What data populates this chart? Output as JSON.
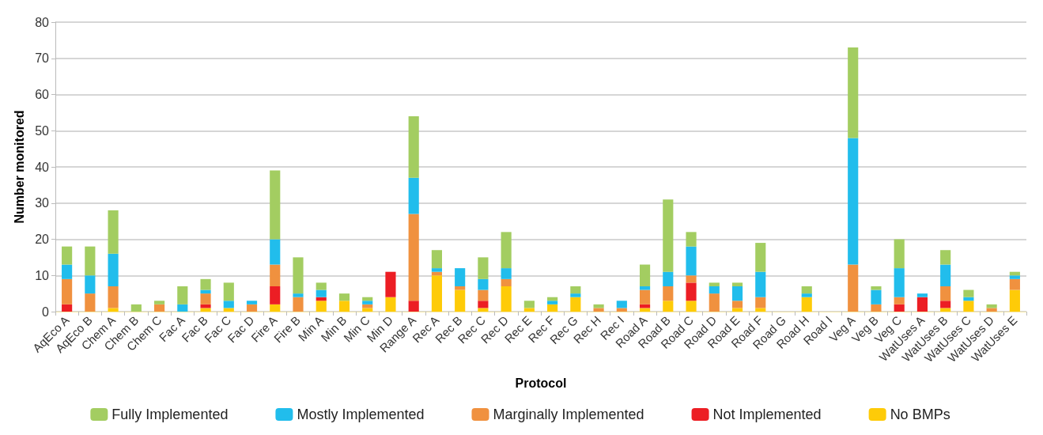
{
  "chart_data": {
    "type": "bar",
    "xlabel": "Protocol",
    "ylabel": "Number monitored",
    "stacked": true,
    "grid": "y",
    "legend": "bottom",
    "ylim": [
      0,
      80
    ],
    "yticks": [
      0,
      10,
      20,
      30,
      40,
      50,
      60,
      70,
      80
    ],
    "categories": [
      "AqEco A",
      "AqEco B",
      "Chem A",
      "Chem B",
      "Chem C",
      "Fac A",
      "Fac B",
      "Fac C",
      "Fac D",
      "Fire A",
      "Fire B",
      "Min A",
      "Min B",
      "Min C",
      "Min D",
      "Range A",
      "Rec A",
      "Rec B",
      "Rec C",
      "Rec D",
      "Rec E",
      "Rec F",
      "Rec G",
      "Rec H",
      "Rec I",
      "Road A",
      "Road B",
      "Road C",
      "Road D",
      "Road E",
      "Road F",
      "Road G",
      "Road H",
      "Road I",
      "Veg A",
      "Veg B",
      "Veg C",
      "WatUses A",
      "WatUses B",
      "WatUses C",
      "WatUses D",
      "WatUses E"
    ],
    "series": [
      {
        "name": "No BMPs",
        "color": "#fecb08",
        "values": [
          0,
          0,
          1,
          0,
          0,
          0,
          1,
          1,
          0,
          2,
          0,
          3,
          3,
          1,
          4,
          0,
          10,
          6,
          1,
          7,
          1,
          2,
          4,
          0,
          0,
          1,
          3,
          3,
          0,
          1,
          1,
          0,
          4,
          0,
          0,
          0,
          0,
          0,
          1,
          3,
          0,
          6
        ]
      },
      {
        "name": "Not Implemented",
        "color": "#ec1e24",
        "values": [
          2,
          0,
          0,
          0,
          0,
          0,
          1,
          0,
          0,
          5,
          0,
          1,
          0,
          0,
          7,
          3,
          0,
          0,
          2,
          0,
          0,
          0,
          0,
          0,
          0,
          1,
          0,
          5,
          0,
          0,
          0,
          0,
          0,
          0,
          0,
          0,
          2,
          4,
          2,
          0,
          0,
          0
        ]
      },
      {
        "name": "Marginally Implemented",
        "color": "#f0913f",
        "values": [
          7,
          5,
          6,
          0,
          2,
          0,
          3,
          0,
          2,
          6,
          4,
          0,
          0,
          1,
          0,
          24,
          1,
          1,
          3,
          2,
          0,
          0,
          0,
          1,
          1,
          4,
          4,
          2,
          5,
          2,
          3,
          0,
          0,
          0,
          13,
          2,
          2,
          0,
          4,
          0,
          1,
          3
        ]
      },
      {
        "name": "Mostly Implemented",
        "color": "#21bdec",
        "values": [
          4,
          5,
          9,
          0,
          0,
          2,
          1,
          2,
          1,
          7,
          1,
          2,
          0,
          1,
          0,
          10,
          1,
          5,
          3,
          3,
          0,
          1,
          1,
          0,
          2,
          1,
          4,
          8,
          2,
          4,
          7,
          0,
          1,
          0,
          35,
          4,
          8,
          1,
          6,
          1,
          0,
          1
        ]
      },
      {
        "name": "Fully Implemented",
        "color": "#a3cd61",
        "values": [
          5,
          8,
          12,
          2,
          1,
          5,
          3,
          5,
          0,
          19,
          10,
          2,
          2,
          1,
          0,
          17,
          5,
          0,
          6,
          10,
          2,
          1,
          2,
          1,
          0,
          6,
          20,
          4,
          1,
          1,
          8,
          0,
          2,
          0,
          25,
          1,
          8,
          0,
          4,
          2,
          1,
          1
        ]
      }
    ]
  }
}
